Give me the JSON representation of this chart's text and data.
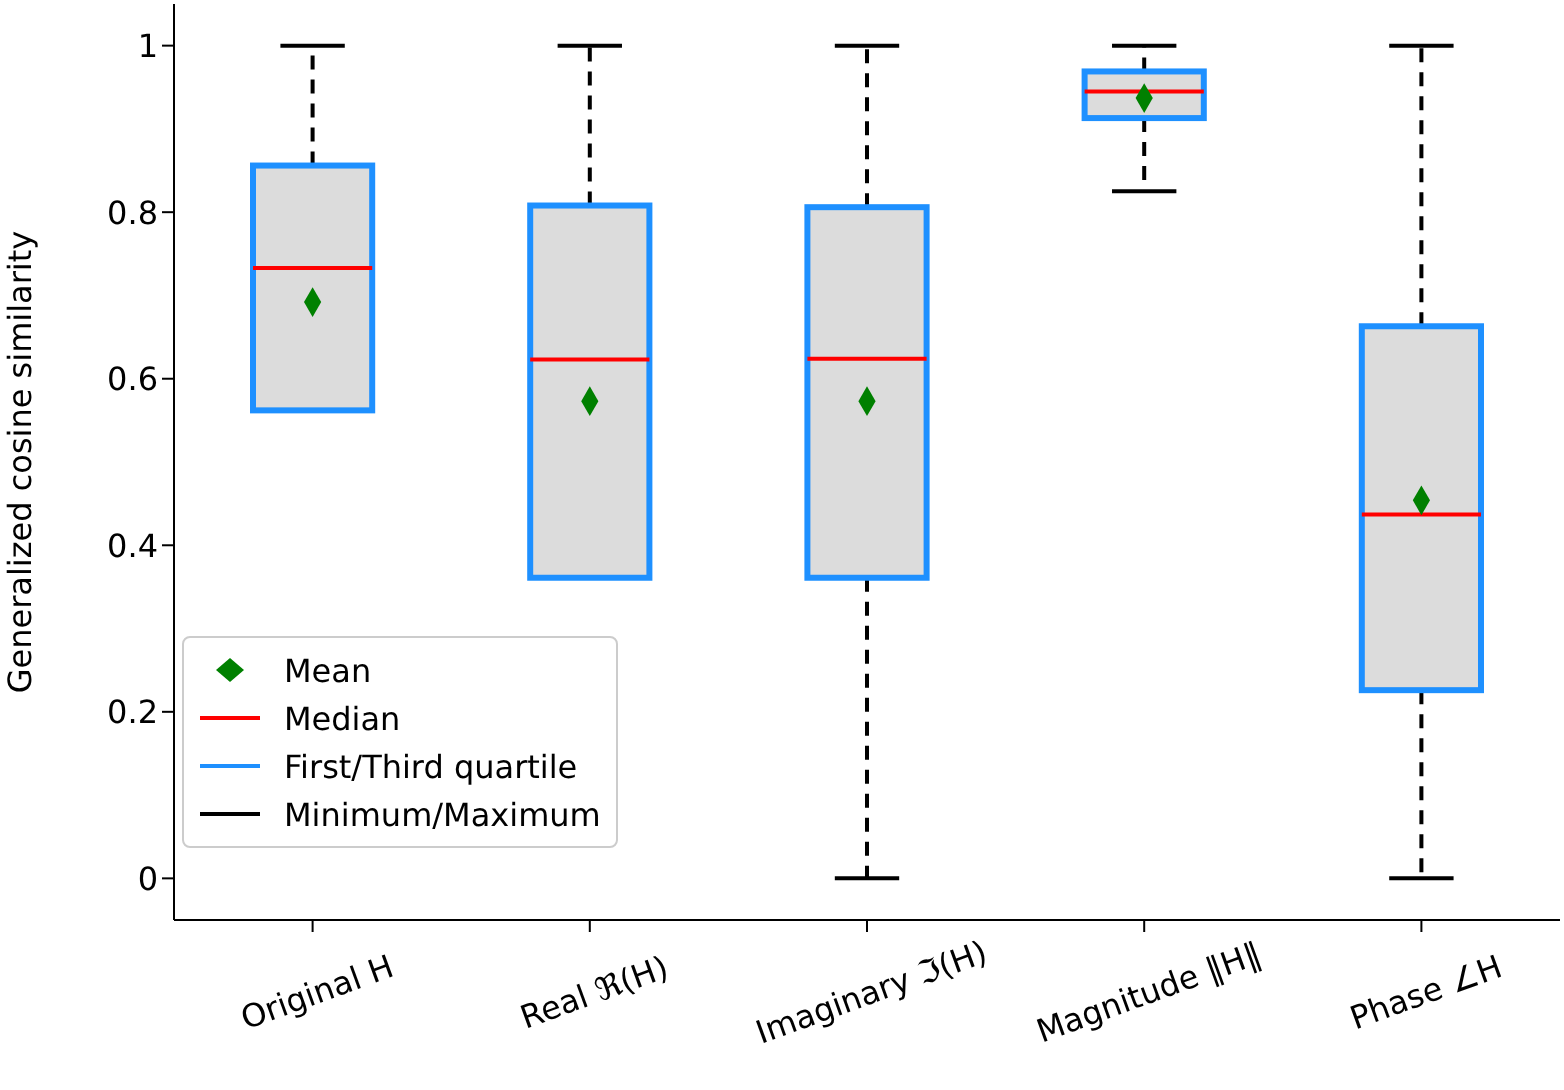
{
  "chart_data": {
    "type": "box",
    "ylabel": "Generalized cosine similarity",
    "categories": [
      "Original H",
      "Real ℜ(H)",
      "Imaginary ℑ(H)",
      "Magnitude ‖H‖",
      "Phase ∠H"
    ],
    "boxes": [
      {
        "low": null,
        "q1": 0.562,
        "median": 0.733,
        "q3": 0.856,
        "high": 1
      },
      {
        "low": null,
        "q1": 0.361,
        "median": 0.623,
        "q3": 0.808,
        "high": 1
      },
      {
        "low": 0,
        "q1": 0.361,
        "median": 0.624,
        "q3": 0.806,
        "high": 1
      },
      {
        "low": 0.825,
        "q1": 0.913,
        "median": 0.945,
        "q3": 0.969,
        "high": 1
      },
      {
        "low": 0,
        "q1": 0.226,
        "median": 0.437,
        "q3": 0.663,
        "high": 1
      }
    ],
    "series": [
      {
        "name": "Mean",
        "type": "scatter",
        "color": "#008000",
        "values": [
          0.692,
          0.573,
          0.573,
          0.937,
          0.454
        ]
      }
    ],
    "annotations": [
      "Median",
      "First/Third quartile",
      "Minimum/Maximum"
    ],
    "marker": "diamond",
    "ylim": [
      -0.05,
      1.05
    ],
    "yticks": [
      0,
      {
        "value": 0.2,
        "label": "0.2"
      },
      {
        "value": 0.4,
        "label": "0.4"
      },
      {
        "value": 0.6,
        "label": "0.6"
      },
      {
        "value": 0.8,
        "label": "0.8"
      },
      1
    ],
    "legend": "bottom left"
  }
}
